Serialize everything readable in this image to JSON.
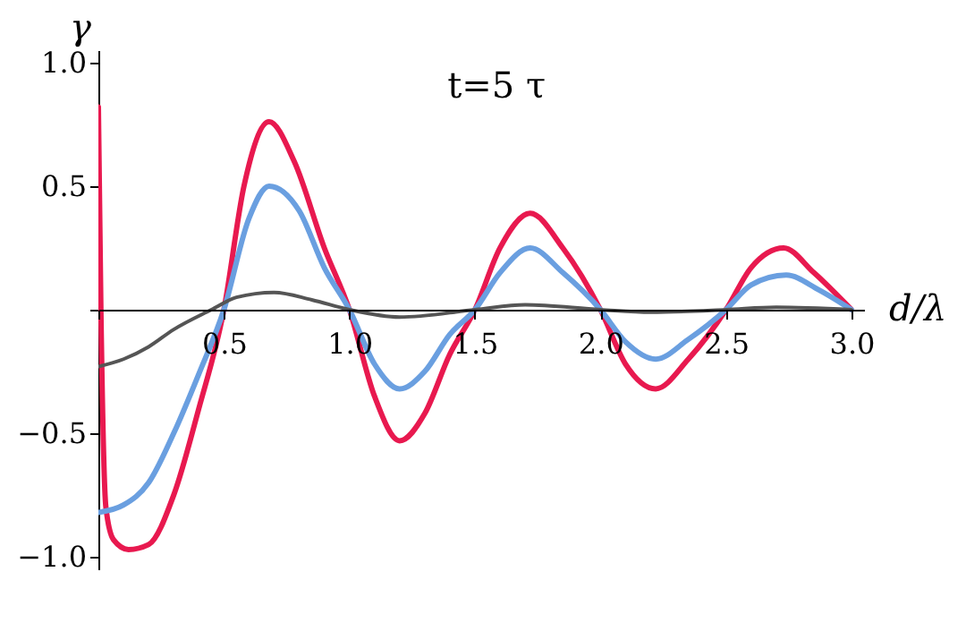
{
  "chart_data": {
    "type": "line",
    "title": "t=5 τ",
    "xlabel": "d/λ",
    "ylabel": "γ",
    "xlim": [
      0,
      3.05
    ],
    "ylim": [
      -1.05,
      1.05
    ],
    "xticks": [
      {
        "value": 0,
        "label": null
      },
      {
        "value": 0.5,
        "label": "0.5"
      },
      {
        "value": 1,
        "label": "1.0"
      },
      {
        "value": 1.5,
        "label": "1.5"
      },
      {
        "value": 2,
        "label": "2.0"
      },
      {
        "value": 2.5,
        "label": "2.5"
      },
      {
        "value": 3,
        "label": "3.0"
      }
    ],
    "yticks": [
      {
        "value": -1,
        "label": "−1.0"
      },
      {
        "value": -0.5,
        "label": "−0.5"
      },
      {
        "value": 0,
        "label": null
      },
      {
        "value": 0.5,
        "label": "0.5"
      },
      {
        "value": 1,
        "label": "1.0"
      }
    ],
    "grid": false,
    "marker": "none",
    "line_style": "solid",
    "series": [
      {
        "color": "#e8194f",
        "x": [
          0,
          0.01,
          0.03,
          0.06,
          0.12,
          0.2,
          0.3,
          0.4,
          0.5,
          0.58,
          0.68,
          0.78,
          0.9,
          1.0,
          1.1,
          1.2,
          1.3,
          1.4,
          1.5,
          1.6,
          1.72,
          1.85,
          2.0,
          2.1,
          2.22,
          2.35,
          2.5,
          2.6,
          2.73,
          2.85,
          3.0
        ],
        "values": [
          0.82,
          0.0,
          -0.8,
          -0.93,
          -0.97,
          -0.95,
          -0.75,
          -0.4,
          0,
          0.5,
          0.76,
          0.6,
          0.25,
          0,
          -0.35,
          -0.53,
          -0.42,
          -0.18,
          0,
          0.25,
          0.39,
          0.25,
          0,
          -0.22,
          -0.32,
          -0.2,
          0,
          0.17,
          0.25,
          0.15,
          0
        ]
      },
      {
        "color": "#6a9fe0",
        "x": [
          0,
          0.1,
          0.2,
          0.3,
          0.4,
          0.5,
          0.6,
          0.68,
          0.8,
          0.9,
          1.0,
          1.1,
          1.2,
          1.3,
          1.4,
          1.5,
          1.6,
          1.72,
          1.85,
          2.0,
          2.1,
          2.22,
          2.35,
          2.5,
          2.6,
          2.74,
          2.87,
          3.0
        ],
        "values": [
          -0.82,
          -0.79,
          -0.7,
          -0.5,
          -0.26,
          0,
          0.37,
          0.5,
          0.4,
          0.17,
          0,
          -0.22,
          -0.32,
          -0.25,
          -0.1,
          0,
          0.15,
          0.25,
          0.15,
          0,
          -0.13,
          -0.2,
          -0.12,
          0,
          0.1,
          0.14,
          0.08,
          0
        ]
      },
      {
        "color": "#555555",
        "x": [
          0,
          0.1,
          0.2,
          0.3,
          0.45,
          0.55,
          0.7,
          0.85,
          1.0,
          1.2,
          1.5,
          1.7,
          2.0,
          2.2,
          2.5,
          2.7,
          3.0
        ],
        "values": [
          -0.23,
          -0.2,
          -0.15,
          -0.08,
          0,
          0.05,
          0.07,
          0.04,
          0,
          -0.03,
          0,
          0.02,
          0,
          -0.01,
          0,
          0.01,
          0
        ]
      }
    ]
  }
}
